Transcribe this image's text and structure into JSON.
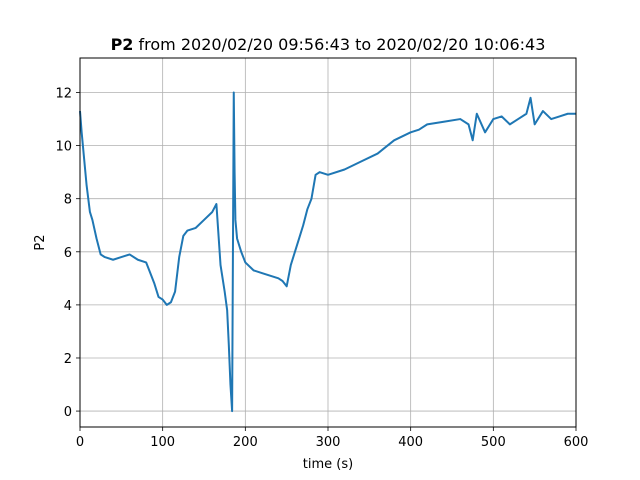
{
  "chart_data": {
    "type": "line",
    "title": {
      "bold": "P2",
      "rest": " from 2020/02/20 09:56:43 to 2020/02/20 10:06:43"
    },
    "xlabel": "time (s)",
    "ylabel": "P2",
    "xlim": [
      0,
      600
    ],
    "ylim": [
      -0.6,
      13.3
    ],
    "x_ticks": [
      0,
      100,
      200,
      300,
      400,
      500,
      600
    ],
    "y_ticks": [
      0,
      2,
      4,
      6,
      8,
      10,
      12
    ],
    "grid": true,
    "legend": "none",
    "color": "#1f77b4",
    "series": [
      {
        "x": [
          0,
          2,
          5,
          8,
          12,
          15,
          20,
          25,
          30,
          40,
          50,
          60,
          70,
          80,
          85,
          90,
          95,
          100,
          105,
          110,
          115,
          120,
          125,
          130,
          140,
          150,
          160,
          165,
          170,
          175,
          178,
          180,
          182,
          184,
          186,
          187,
          188,
          190,
          195,
          200,
          210,
          220,
          230,
          240,
          245,
          250,
          255,
          260,
          265,
          270,
          275,
          280,
          285,
          290,
          300,
          320,
          340,
          360,
          380,
          400,
          410,
          420,
          440,
          460,
          470,
          475,
          480,
          490,
          500,
          510,
          520,
          530,
          540,
          545,
          550,
          560,
          570,
          580,
          590,
          600
        ],
        "y": [
          11.3,
          10.5,
          9.5,
          8.5,
          7.5,
          7.2,
          6.5,
          5.9,
          5.8,
          5.7,
          5.8,
          5.9,
          5.7,
          5.6,
          5.2,
          4.8,
          4.3,
          4.2,
          4.0,
          4.1,
          4.5,
          5.8,
          6.6,
          6.8,
          6.9,
          7.2,
          7.5,
          7.8,
          5.5,
          4.5,
          3.8,
          2.5,
          1.0,
          0.0,
          12.0,
          9.0,
          7.2,
          6.5,
          6.0,
          5.6,
          5.3,
          5.2,
          5.1,
          5.0,
          4.9,
          4.7,
          5.5,
          6.0,
          6.5,
          7.0,
          7.6,
          8.0,
          8.9,
          9.0,
          8.9,
          9.1,
          9.4,
          9.7,
          10.2,
          10.5,
          10.6,
          10.8,
          10.9,
          11.0,
          10.8,
          10.2,
          11.2,
          10.5,
          11.0,
          11.1,
          10.8,
          11.0,
          11.2,
          11.8,
          10.8,
          11.3,
          11.0,
          11.1,
          11.2,
          11.2
        ]
      }
    ]
  }
}
